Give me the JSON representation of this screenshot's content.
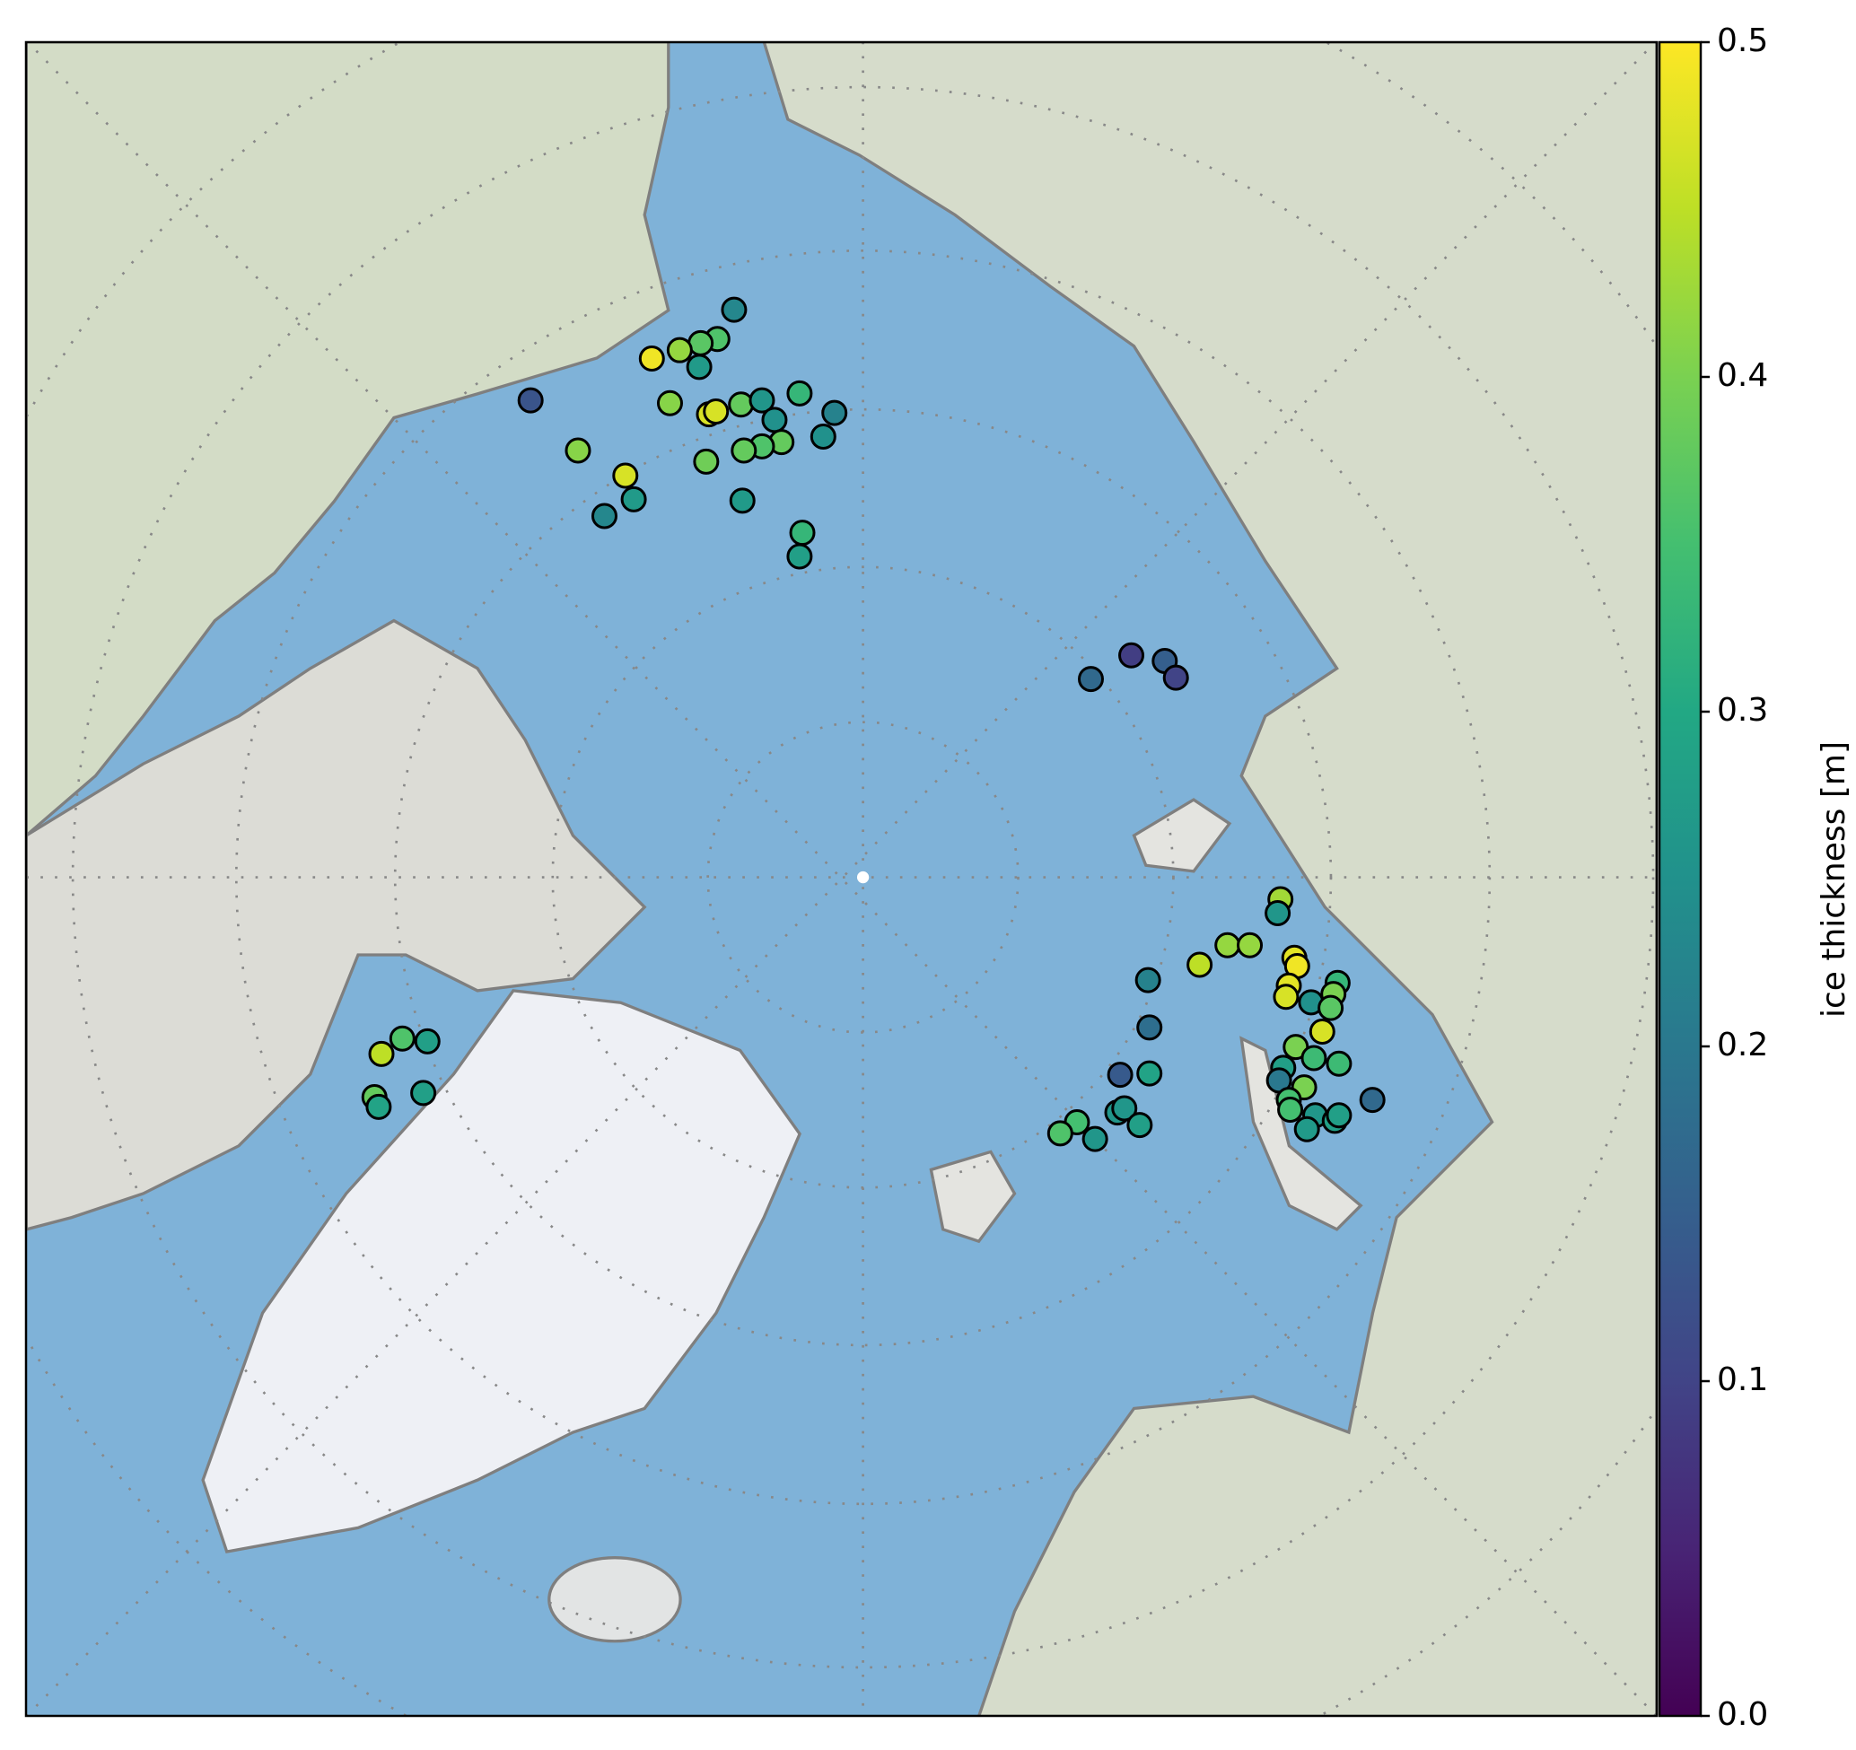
{
  "chart_data": {
    "type": "scatter",
    "colorbar_label": "ice thickness [m]",
    "colormap": "viridis",
    "xlim": [
      -6000,
      5700
    ],
    "ylim": [
      -6020,
      5990
    ],
    "x": [
      -920,
      -1040,
      -1160,
      -1310,
      -1510,
      -1170,
      -2380,
      -1380,
      -1100,
      -1050,
      -870,
      -720,
      -450,
      -630,
      -200,
      -280,
      -580,
      -720,
      -850,
      -2040,
      -1120,
      -1700,
      -1640,
      -1850,
      -860,
      -430,
      -450,
      1930,
      2170,
      2250,
      1640,
      -3300,
      -3120,
      -3450,
      -3500,
      -3470,
      -3150,
      3000,
      2980,
      2620,
      2780,
      2420,
      3100,
      3120,
      2050,
      3060,
      3040,
      3220,
      3410,
      3380,
      3360,
      2060,
      3300,
      3110,
      3240,
      3420,
      3020,
      2990,
      1850,
      2060,
      3170,
      3660,
      3060,
      3070,
      3250,
      3390,
      3420,
      3190,
      1830,
      1880,
      1990,
      1540,
      1420,
      1670
    ],
    "y": [
      4070,
      3860,
      3830,
      3780,
      3720,
      3660,
      3420,
      3400,
      3320,
      3340,
      3390,
      3420,
      3470,
      3280,
      3330,
      3160,
      3120,
      3090,
      3060,
      3060,
      2980,
      2880,
      2710,
      2590,
      2700,
      2470,
      2300,
      1590,
      1550,
      1430,
      1420,
      -1160,
      -1180,
      -1270,
      -1580,
      -1650,
      -1550,
      -160,
      -260,
      -490,
      -490,
      -630,
      -580,
      -640,
      -740,
      -780,
      -860,
      -900,
      -760,
      -840,
      -940,
      -1080,
      -1110,
      -1220,
      -1300,
      -1340,
      -1370,
      -1460,
      -1420,
      -1410,
      -1510,
      -1600,
      -1600,
      -1670,
      -1710,
      -1750,
      -1710,
      -1810,
      -1690,
      -1660,
      -1780,
      -1760,
      -1840,
      -1880
    ],
    "values": [
      0.23,
      0.36,
      0.37,
      0.42,
      0.49,
      0.27,
      0.13,
      0.41,
      0.47,
      0.47,
      0.38,
      0.26,
      0.33,
      0.25,
      0.22,
      0.25,
      0.38,
      0.36,
      0.38,
      0.41,
      0.39,
      0.47,
      0.27,
      0.23,
      0.27,
      0.33,
      0.28,
      0.09,
      0.15,
      0.1,
      0.17,
      0.36,
      0.28,
      0.45,
      0.38,
      0.29,
      0.28,
      0.43,
      0.26,
      0.42,
      0.42,
      0.45,
      0.48,
      0.49,
      0.22,
      0.48,
      0.47,
      0.25,
      0.33,
      0.4,
      0.37,
      0.18,
      0.47,
      0.4,
      0.34,
      0.34,
      0.28,
      0.2,
      0.14,
      0.29,
      0.4,
      0.17,
      0.35,
      0.35,
      0.26,
      0.28,
      0.28,
      0.27,
      0.26,
      0.26,
      0.28,
      0.35,
      0.36,
      0.26
    ],
    "clim": [
      0,
      0.5
    ],
    "cticks": [
      {
        "value": 0,
        "label": "0.0"
      },
      0.1,
      0.2,
      0.3,
      0.4,
      0.5
    ]
  }
}
